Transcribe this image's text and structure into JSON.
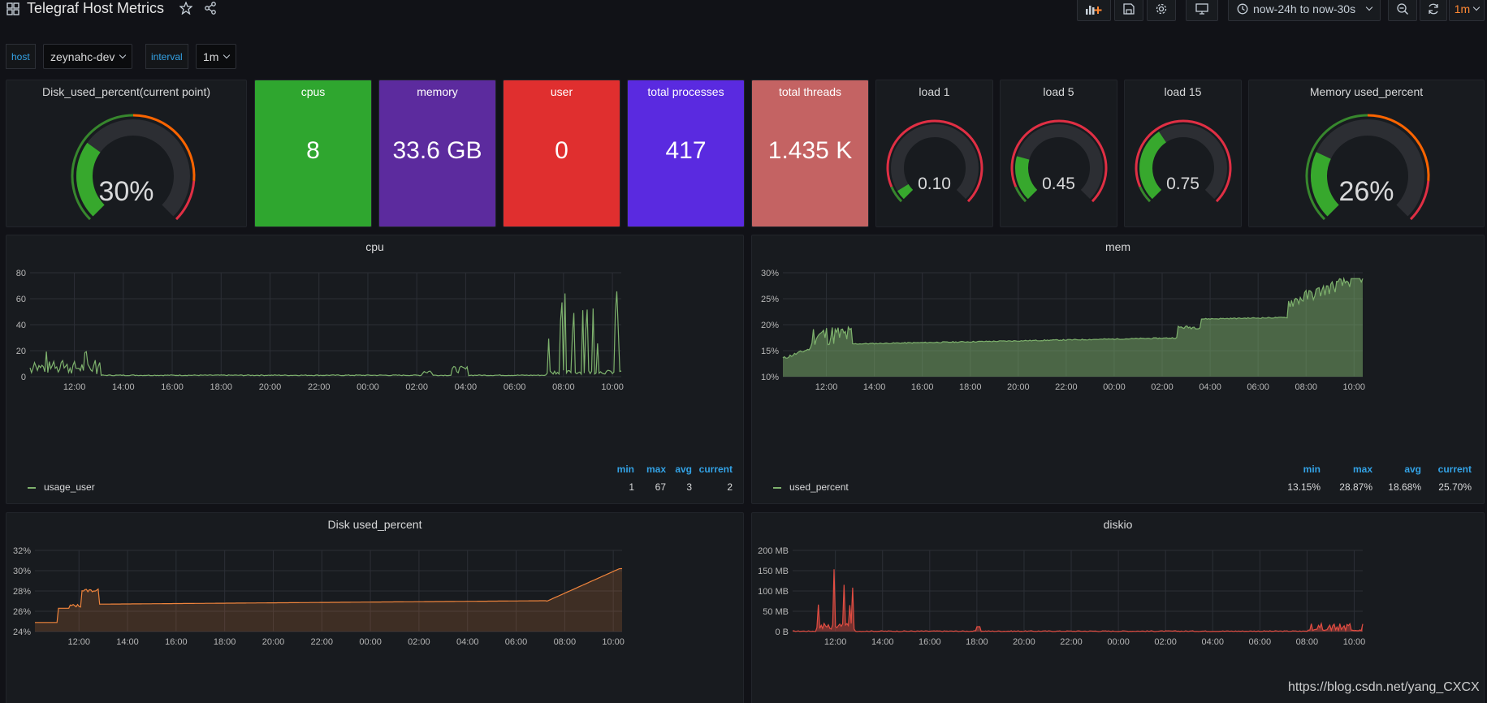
{
  "header": {
    "title": "Telegraf Host Metrics",
    "time_range": "now-24h to now-30s",
    "refresh_interval": "1m"
  },
  "variables": {
    "host_label": "host",
    "host_value": "zeynahc-dev",
    "interval_label": "interval",
    "interval_value": "1m"
  },
  "stats": [
    {
      "title": "cpus",
      "value": "8",
      "color": "#2fa62f"
    },
    {
      "title": "memory",
      "value": "33.6 GB",
      "color": "#5c2b9e"
    },
    {
      "title": "user",
      "value": "0",
      "color": "#e02f2f"
    },
    {
      "title": "total processes",
      "value": "417",
      "color": "#5a2ae0"
    },
    {
      "title": "total threads",
      "value": "1.435 K",
      "color": "#c46363"
    }
  ],
  "gauges": [
    {
      "title": "Disk_used_percent(current point)",
      "value_text": "30%",
      "value": 30,
      "max": 100
    },
    {
      "title": "load 1",
      "value_text": "0.10",
      "value": 0.1,
      "max": 2
    },
    {
      "title": "load 5",
      "value_text": "0.45",
      "value": 0.45,
      "max": 2
    },
    {
      "title": "load 15",
      "value_text": "0.75",
      "value": 0.75,
      "max": 2
    },
    {
      "title": "Memory used_percent",
      "value_text": "26%",
      "value": 26,
      "max": 100
    }
  ],
  "legend_headers": {
    "min": "min",
    "max": "max",
    "avg": "avg",
    "current": "current"
  },
  "time_ticks": [
    "12:00",
    "14:00",
    "16:00",
    "18:00",
    "20:00",
    "22:00",
    "00:00",
    "02:00",
    "04:00",
    "06:00",
    "08:00",
    "10:00"
  ],
  "chart_data": [
    {
      "type": "line",
      "title": "cpu",
      "y_ticks": [
        "0",
        "20",
        "40",
        "60",
        "80"
      ],
      "ylim": [
        0,
        80
      ],
      "series": [
        {
          "name": "usage_user",
          "color": "#7eb26d",
          "min": "1",
          "max": "67",
          "avg": "3",
          "current": "2"
        }
      ]
    },
    {
      "type": "area",
      "title": "mem",
      "y_ticks": [
        "10%",
        "15%",
        "20%",
        "25%",
        "30%"
      ],
      "ylim": [
        10,
        30
      ],
      "series": [
        {
          "name": "used_percent",
          "color": "#7eb26d",
          "min": "13.15%",
          "max": "28.87%",
          "avg": "18.68%",
          "current": "25.70%"
        }
      ]
    },
    {
      "type": "area",
      "title": "Disk used_percent",
      "y_ticks": [
        "24%",
        "26%",
        "28%",
        "30%",
        "32%"
      ],
      "ylim": [
        24,
        32
      ],
      "series": [
        {
          "color": "#ef843c"
        }
      ]
    },
    {
      "type": "area",
      "title": "diskio",
      "y_ticks": [
        "0 B",
        "50 MB",
        "100 MB",
        "150 MB",
        "200 MB"
      ],
      "ylim": [
        0,
        200
      ],
      "series": [
        {
          "color": "#e24d42"
        }
      ]
    }
  ],
  "watermark": "https://blog.csdn.net/yang_CXCX"
}
